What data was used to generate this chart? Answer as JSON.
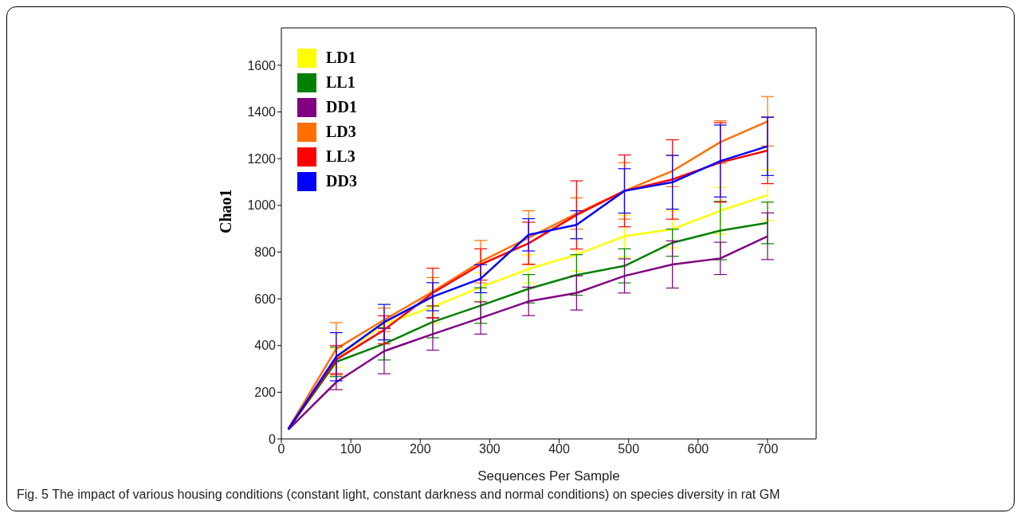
{
  "chart_data": {
    "type": "line",
    "xlabel": "Sequences Per Sample",
    "ylabel": "Chao1",
    "x": [
      10,
      79,
      148,
      218,
      287,
      356,
      425,
      494,
      563,
      632,
      700
    ],
    "series": [
      {
        "name": "LD1",
        "color": "#ffff00",
        "values": [
          42,
          346,
          492,
          565,
          650,
          728,
          789,
          868,
          898,
          977,
          1044
        ],
        "errors": [
          null,
          40,
          null,
          69,
          61,
          60,
          70,
          90,
          80,
          100,
          109
        ]
      },
      {
        "name": "LL1",
        "color": "#008000",
        "values": [
          42,
          330,
          407,
          501,
          571,
          643,
          702,
          741,
          840,
          892,
          925
        ],
        "errors": [
          null,
          63,
          69,
          68,
          76,
          61,
          87,
          73,
          58,
          125,
          89
        ]
      },
      {
        "name": "DD1",
        "color": "#800080",
        "values": [
          40,
          243,
          376,
          449,
          518,
          589,
          625,
          698,
          747,
          773,
          868
        ],
        "errors": [
          null,
          32,
          97,
          69,
          69,
          61,
          73,
          73,
          101,
          69,
          100
        ]
      },
      {
        "name": "LD3",
        "color": "#ff7000",
        "values": [
          44,
          386,
          510,
          631,
          759,
          862,
          965,
          1062,
          1147,
          1271,
          1360
        ],
        "errors": [
          null,
          112,
          50,
          60,
          91,
          115,
          67,
          121,
          67,
          91,
          106
        ]
      },
      {
        "name": "LL3",
        "color": "#ff0000",
        "values": [
          42,
          340,
          467,
          625,
          747,
          838,
          959,
          1062,
          1111,
          1184,
          1235
        ],
        "errors": [
          null,
          60,
          60,
          106,
          67,
          90,
          146,
          154,
          170,
          170,
          142
        ]
      },
      {
        "name": "DD3",
        "color": "#0000ff",
        "values": [
          42,
          352,
          500,
          609,
          686,
          874,
          917,
          1062,
          1099,
          1190,
          1253
        ],
        "errors": [
          null,
          103,
          76,
          60,
          60,
          69,
          60,
          95,
          115,
          154,
          125
        ]
      }
    ],
    "xlim": [
      0,
      770
    ],
    "xticks": [
      0,
      100,
      200,
      300,
      400,
      500,
      600,
      700
    ],
    "ylim": [
      0,
      1760
    ],
    "yticks": [
      0,
      200,
      400,
      600,
      800,
      1000,
      1200,
      1400,
      1600
    ],
    "grid": false,
    "legend": "top left",
    "marker": "none",
    "line_style": "solid",
    "annotations": [
      "Fig. 5 The impact of various housing conditions (constant light, constant darkness and normal conditions) on species diversity in rat GM"
    ]
  }
}
